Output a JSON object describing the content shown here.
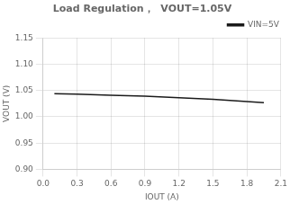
{
  "chart_data": {
    "type": "line",
    "title": "Load Regulation，  VOUT=1.05V",
    "xlabel": "IOUT (A)",
    "ylabel": "VOUT (V)",
    "x": [
      0.1,
      0.3,
      0.6,
      0.9,
      1.2,
      1.5,
      1.8,
      1.95
    ],
    "series": [
      {
        "name": "VIN=5V",
        "color": "#1a1a1a",
        "values": [
          1.044,
          1.043,
          1.041,
          1.039,
          1.036,
          1.033,
          1.029,
          1.027
        ]
      }
    ],
    "xlim": [
      0.0,
      2.1
    ],
    "ylim": [
      0.9,
      1.15
    ],
    "xticks": [
      {
        "value": 0.0,
        "label": "0.0"
      },
      0.3,
      0.6,
      0.9,
      1.2,
      1.5,
      1.8,
      2.1
    ],
    "yticks": [
      {
        "value": 0.9,
        "label": "0.90"
      },
      0.95,
      {
        "value": 1.0,
        "label": "1.00"
      },
      1.05,
      {
        "value": 1.1,
        "label": "1.10"
      },
      1.15
    ],
    "grid": true,
    "legend": "upper right"
  }
}
